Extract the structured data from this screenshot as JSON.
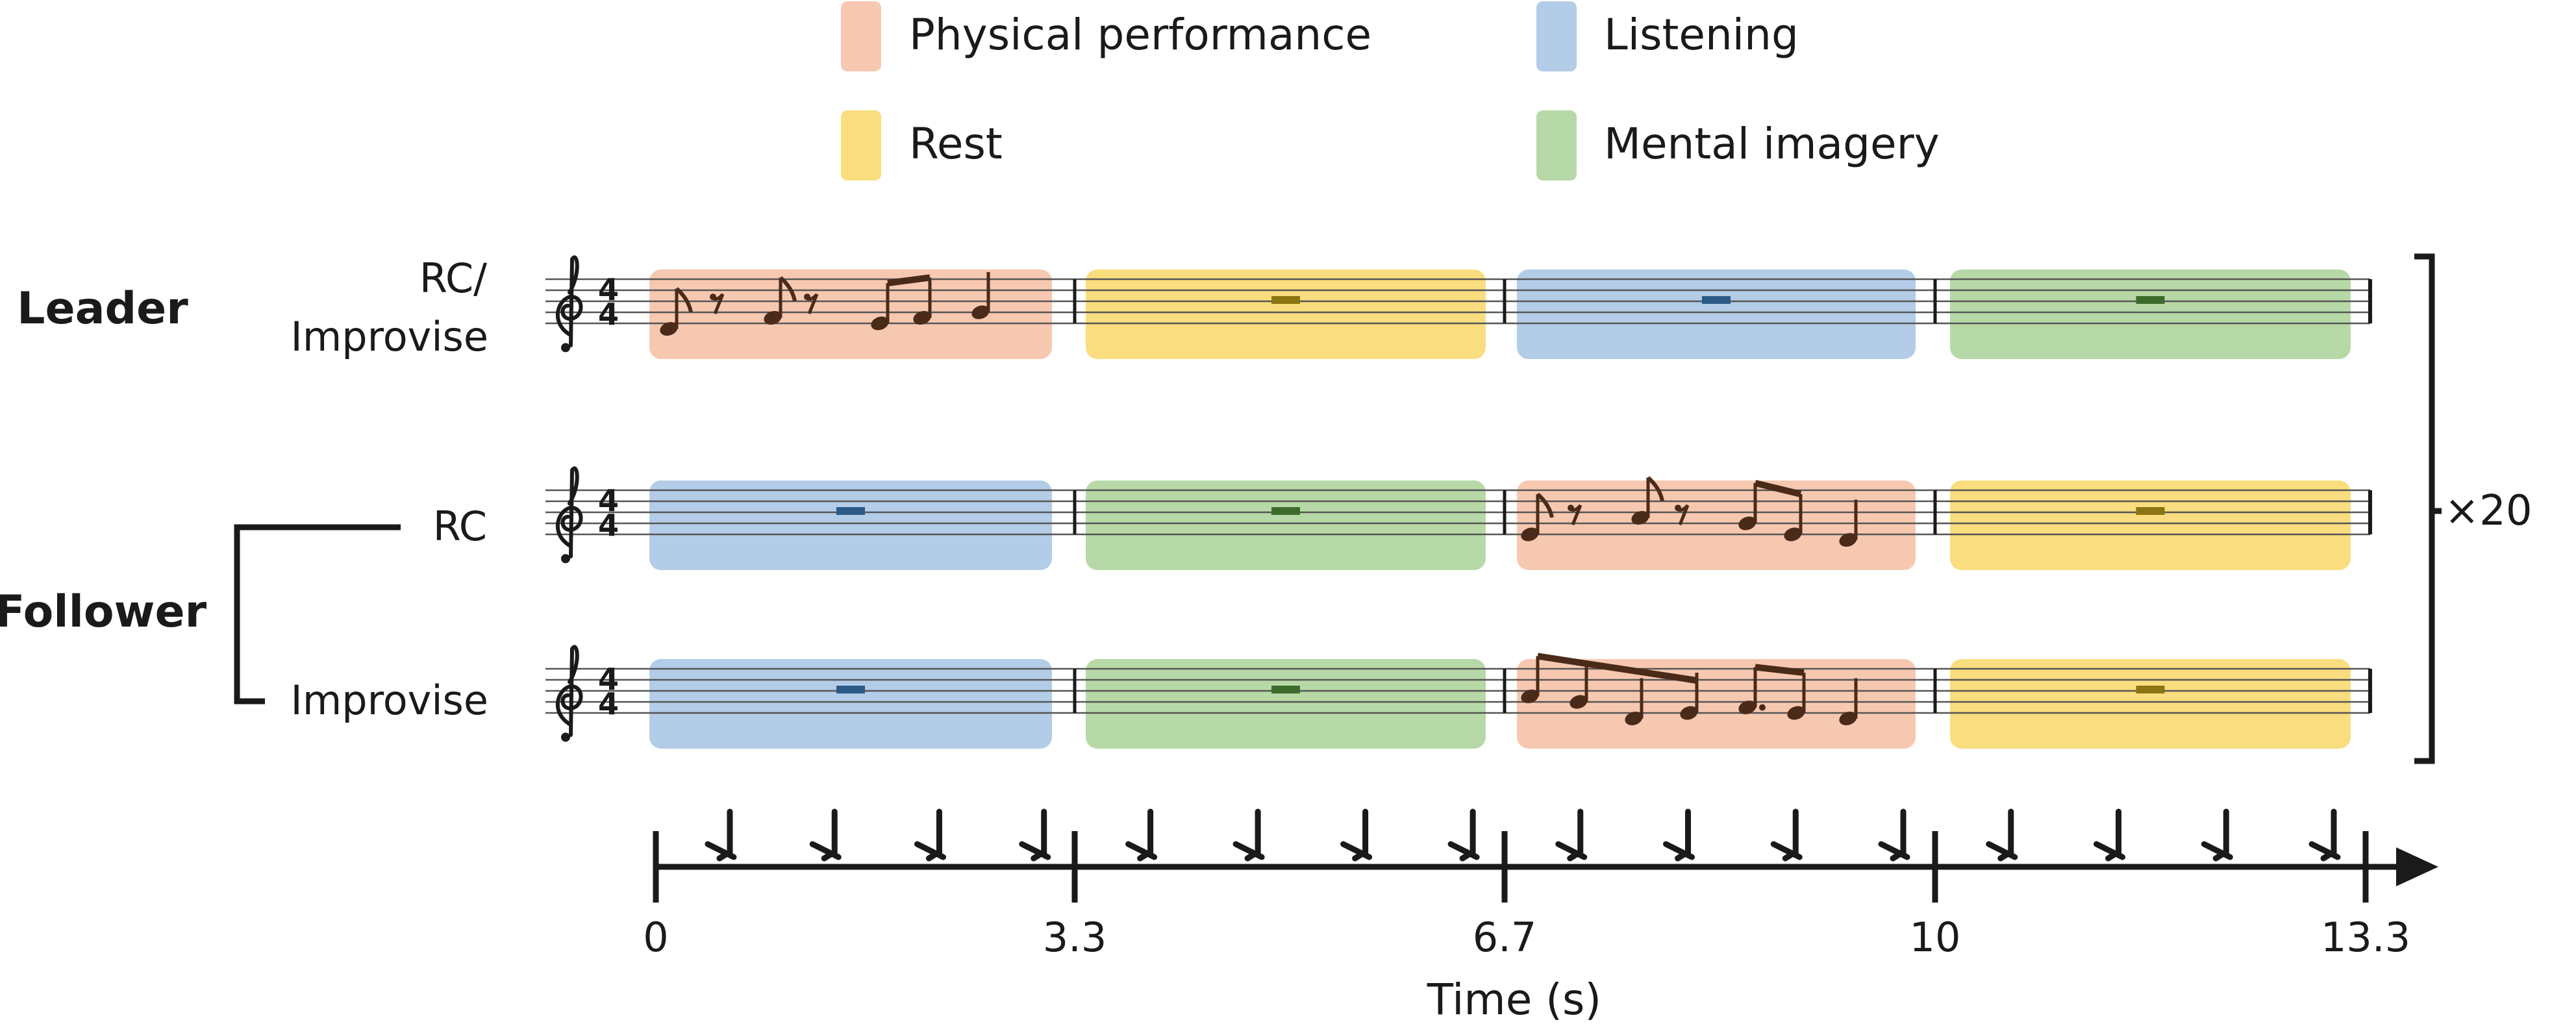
{
  "legend": [
    {
      "key": "physical",
      "label": "Physical performance",
      "color": "#f7c8b0"
    },
    {
      "key": "listening",
      "label": "Listening",
      "color": "#b3cce8"
    },
    {
      "key": "rest",
      "label": "Rest",
      "color": "#f9dd7e"
    },
    {
      "key": "imagery",
      "label": "Mental imagery",
      "color": "#b7d9a7"
    }
  ],
  "roles": {
    "leader": "Leader",
    "follower": "Follower"
  },
  "rows": [
    {
      "label_line1": "RC/",
      "label_line2": "Improvise",
      "phases": [
        "physical",
        "rest",
        "listening",
        "imagery"
      ]
    },
    {
      "label_line1": "RC",
      "label_line2": "",
      "phases": [
        "listening",
        "imagery",
        "physical",
        "rest"
      ]
    },
    {
      "label_line1": "Improvise",
      "label_line2": "",
      "phases": [
        "listening",
        "imagery",
        "physical",
        "rest"
      ]
    }
  ],
  "repeat_label": "×20",
  "axis": {
    "ticks": [
      "0",
      "3.3",
      "6.7",
      "10",
      "13.3"
    ],
    "title": "Time (s)",
    "beat_icon": "metronome-beat-icon"
  },
  "colors": {
    "text": "#1a1a1a",
    "note": "#4a2a18",
    "rest_mark_blue": "#2b5a86",
    "rest_mark_yellow": "#8c7412",
    "rest_mark_green": "#3c6b2c"
  }
}
